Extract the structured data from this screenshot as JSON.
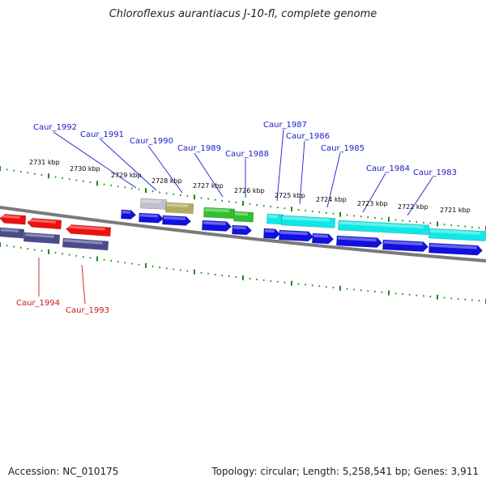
{
  "title": "Chloroflexus aurantiacus J-10-fl, complete genome",
  "footer": {
    "accession": "Accession: NC_010175",
    "info": "Topology: circular; Length: 5,258,541 bp; Genes: 3,911"
  },
  "colors": {
    "backbone": "#7a7a7a",
    "tick": "#1e8a1e",
    "gene_blue": "#1010e0",
    "gene_red": "#ee1010",
    "gene_slate": "#4a4a8c",
    "gene_cyan": "#10e8e8",
    "gene_green": "#30c030",
    "gene_gray": "#c0c0c8",
    "gene_khaki": "#b4aa60",
    "label_top": "#1a1acc",
    "label_bottom": "#cc1a1a"
  },
  "kbp_labels": [
    "2731 kbp",
    "2730 kbp",
    "2729 kbp",
    "2728 kbp",
    "2727 kbp",
    "2726 kbp",
    "2725 kbp",
    "2724 kbp",
    "2723 kbp",
    "2722 kbp",
    "2721 kbp"
  ],
  "top_gene_labels": [
    "Caur_1992",
    "Caur_1991",
    "Caur_1990",
    "Caur_1989",
    "Caur_1988",
    "Caur_1987",
    "Caur_1986",
    "Caur_1985",
    "Caur_1984",
    "Caur_1983"
  ],
  "bottom_gene_labels": [
    "Caur_1994",
    "Caur_1993"
  ]
}
